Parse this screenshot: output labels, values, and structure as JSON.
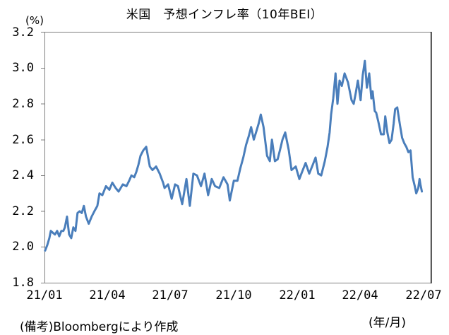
{
  "chart_data": {
    "type": "line",
    "title": "米国　予想インフレ率（10年BEI）",
    "ylabel": "(%)",
    "xlabel": "(年/月)",
    "ylim": [
      1.8,
      3.2
    ],
    "yticks": [
      "3.2",
      "3.0",
      "2.8",
      "2.6",
      "2.4",
      "2.2",
      "2.0",
      "1.8"
    ],
    "xticks": [
      "21/01",
      "21/04",
      "21/07",
      "21/10",
      "22/01",
      "22/04",
      "22/07"
    ],
    "xrange_months": [
      0,
      18.35
    ],
    "grid": false,
    "legend": null,
    "series": [
      {
        "name": "10年BEI",
        "color": "#4a7ebb",
        "x_months": [
          0.03,
          0.13,
          0.23,
          0.3,
          0.4,
          0.5,
          0.6,
          0.7,
          0.8,
          0.9,
          0.97,
          1.07,
          1.17,
          1.27,
          1.37,
          1.47,
          1.57,
          1.67,
          1.77,
          1.87,
          1.97,
          2.1,
          2.24,
          2.37,
          2.51,
          2.61,
          2.75,
          2.92,
          3.08,
          3.22,
          3.38,
          3.52,
          3.72,
          3.89,
          4.02,
          4.13,
          4.26,
          4.36,
          4.46,
          4.56,
          4.69,
          4.83,
          5.0,
          5.13,
          5.3,
          5.47,
          5.63,
          5.7,
          5.87,
          6.04,
          6.2,
          6.34,
          6.54,
          6.74,
          6.9,
          7.07,
          7.24,
          7.43,
          7.6,
          7.77,
          7.94,
          8.1,
          8.3,
          8.5,
          8.69,
          8.8,
          8.99,
          9.16,
          9.3,
          9.44,
          9.57,
          9.7,
          9.81,
          9.94,
          10.07,
          10.17,
          10.27,
          10.4,
          10.57,
          10.7,
          10.8,
          10.94,
          11.07,
          11.2,
          11.3,
          11.43,
          11.6,
          11.73,
          11.93,
          12.1,
          12.23,
          12.4,
          12.57,
          12.74,
          12.87,
          13.0,
          13.14,
          13.31,
          13.44,
          13.54,
          13.61,
          13.71,
          13.82,
          13.91,
          14.01,
          14.12,
          14.25,
          14.41,
          14.58,
          14.68,
          14.78,
          14.88,
          15.01,
          15.11,
          15.21,
          15.31,
          15.42,
          15.52,
          15.58,
          15.68,
          15.75,
          15.85,
          15.98,
          16.11,
          16.18,
          16.28,
          16.38,
          16.48,
          16.58,
          16.65,
          16.75,
          16.88,
          16.98,
          17.08,
          17.18,
          17.28,
          17.38,
          17.48,
          17.58,
          17.65,
          17.75,
          17.81,
          17.85,
          17.92,
          18.01,
          18.08
        ],
        "values": [
          1.98,
          2.01,
          2.05,
          2.09,
          2.08,
          2.07,
          2.09,
          2.06,
          2.09,
          2.09,
          2.11,
          2.17,
          2.07,
          2.05,
          2.11,
          2.09,
          2.19,
          2.2,
          2.19,
          2.23,
          2.17,
          2.13,
          2.17,
          2.2,
          2.23,
          2.3,
          2.29,
          2.34,
          2.32,
          2.36,
          2.33,
          2.31,
          2.35,
          2.34,
          2.37,
          2.4,
          2.39,
          2.42,
          2.46,
          2.51,
          2.54,
          2.56,
          2.45,
          2.43,
          2.45,
          2.41,
          2.36,
          2.33,
          2.35,
          2.27,
          2.35,
          2.34,
          2.24,
          2.38,
          2.23,
          2.41,
          2.4,
          2.34,
          2.41,
          2.29,
          2.38,
          2.34,
          2.33,
          2.39,
          2.35,
          2.26,
          2.37,
          2.37,
          2.44,
          2.5,
          2.57,
          2.62,
          2.67,
          2.6,
          2.65,
          2.69,
          2.74,
          2.67,
          2.51,
          2.48,
          2.6,
          2.48,
          2.49,
          2.55,
          2.6,
          2.64,
          2.54,
          2.43,
          2.45,
          2.38,
          2.42,
          2.47,
          2.41,
          2.46,
          2.5,
          2.41,
          2.4,
          2.48,
          2.56,
          2.64,
          2.74,
          2.83,
          2.97,
          2.8,
          2.93,
          2.9,
          2.97,
          2.92,
          2.82,
          2.8,
          2.86,
          2.93,
          2.82,
          2.96,
          3.04,
          2.89,
          2.97,
          2.83,
          2.87,
          2.76,
          2.75,
          2.7,
          2.63,
          2.63,
          2.73,
          2.64,
          2.58,
          2.6,
          2.69,
          2.77,
          2.78,
          2.68,
          2.61,
          2.58,
          2.56,
          2.53,
          2.54,
          2.39,
          2.34,
          2.3,
          2.33,
          2.38,
          2.35,
          2.31
        ]
      }
    ],
    "annotations": [
      "(備考)Bloombergにより作成"
    ]
  },
  "header": {
    "title": "米国　予想インフレ率（10年BEI）",
    "unit": "(%)"
  },
  "axes": {
    "y_ticks": [
      "3.2",
      "3.0",
      "2.8",
      "2.6",
      "2.4",
      "2.2",
      "2.0",
      "1.8"
    ],
    "x_ticks": [
      "21/01",
      "21/04",
      "21/07",
      "21/10",
      "22/01",
      "22/04",
      "22/07"
    ],
    "x_unit": "(年/月)"
  },
  "footer": {
    "note": "(備考)Bloombergにより作成"
  }
}
